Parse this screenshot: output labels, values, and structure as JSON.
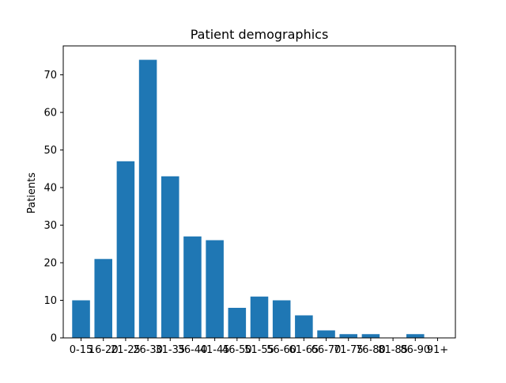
{
  "chart_data": {
    "type": "bar",
    "title": "Patient demographics",
    "xlabel": "",
    "ylabel": "Patients",
    "categories": [
      "0-15",
      "16-20",
      "21-25",
      "26-30",
      "31-35",
      "36-40",
      "41-45",
      "46-50",
      "51-55",
      "56-60",
      "61-65",
      "66-70",
      "71-75",
      "76-80",
      "81-85",
      "86-90",
      "91+"
    ],
    "values": [
      10,
      21,
      47,
      74,
      43,
      27,
      26,
      8,
      11,
      10,
      6,
      2,
      1,
      1,
      0,
      1,
      0
    ],
    "ylim": [
      0,
      77.7
    ],
    "yticks": [
      0,
      10,
      20,
      30,
      40,
      50,
      60,
      70
    ],
    "bar_color": "#1f77b4",
    "grid": false,
    "legend": "none"
  }
}
